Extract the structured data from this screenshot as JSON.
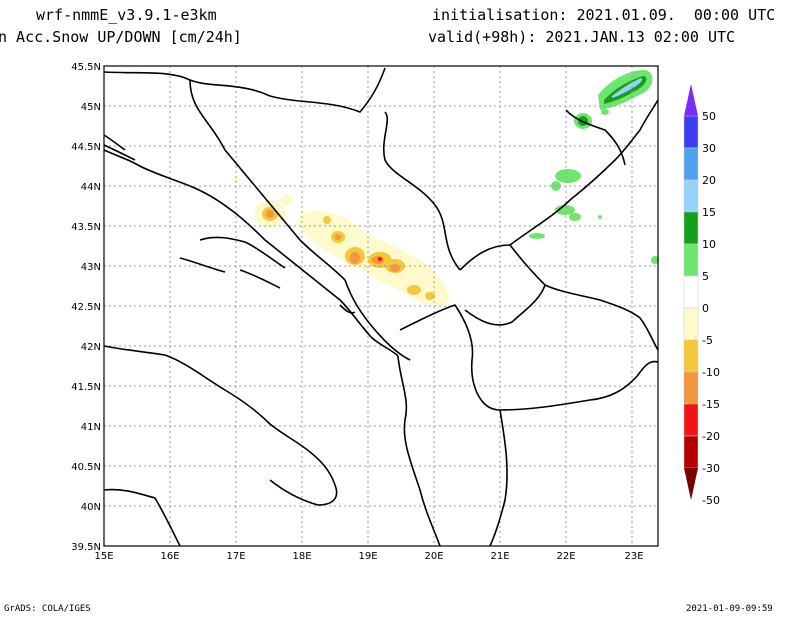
{
  "header": {
    "model": "wrf-nmmE_v3.9.1-e3km",
    "variable": "n Acc.Snow UP/DOWN [cm/24h]",
    "init": "initialisation: 2021.01.09.  00:00 UTC",
    "valid": "valid(+98h): 2021.JAN.13 02:00 UTC"
  },
  "footer": {
    "left": "GrADS: COLA/IGES",
    "right": "2021-01-09-09:59"
  },
  "axes": {
    "lat_labels": [
      "45.5N",
      "45N",
      "44.5N",
      "44N",
      "43.5N",
      "43N",
      "42.5N",
      "42N",
      "41.5N",
      "41N",
      "40.5N",
      "40N",
      "39.5N"
    ],
    "lon_labels": [
      "15E",
      "16E",
      "17E",
      "18E",
      "19E",
      "20E",
      "21E",
      "22E",
      "23E"
    ]
  },
  "colorbar": {
    "labels": [
      "50",
      "30",
      "20",
      "15",
      "10",
      "5",
      "0",
      "-5",
      "-10",
      "-15",
      "-20",
      "-30",
      "-50"
    ],
    "colors": [
      "#7b2cf0",
      "#3c3cf0",
      "#50a0f0",
      "#96d2fa",
      "#16a01a",
      "#6ee66e",
      "#ffffff",
      "#fffacc",
      "#f5c83c",
      "#f5963c",
      "#f01414",
      "#b40000",
      "#780000"
    ]
  }
}
